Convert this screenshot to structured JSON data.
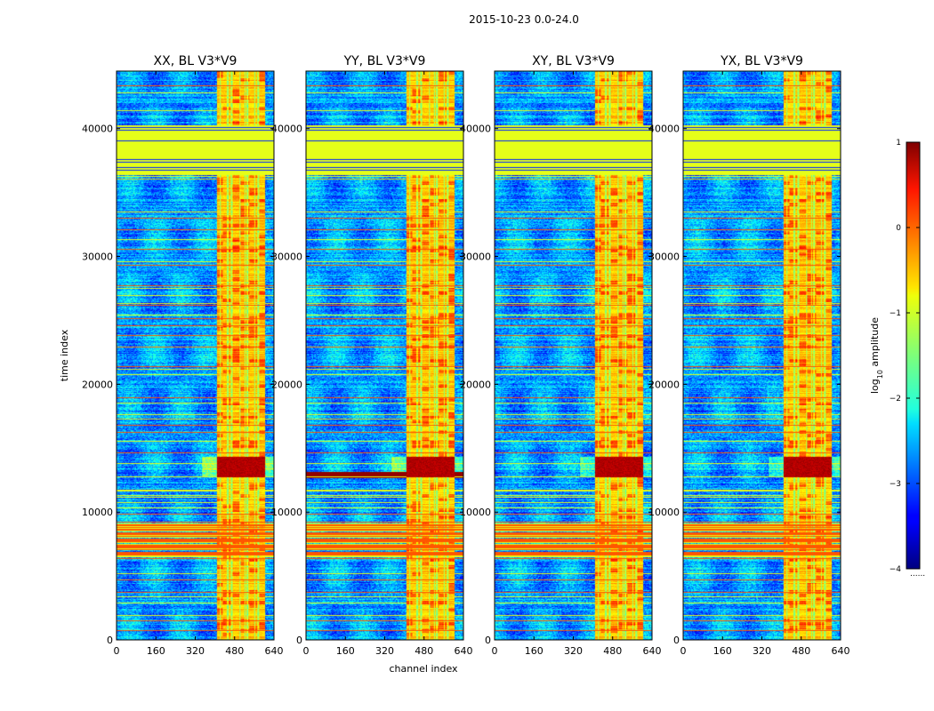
{
  "figure": {
    "suptitle": "2015-10-23 0.0-24.0",
    "xlabel": "channel index",
    "ylabel": "time index",
    "colorbar_label_base": "log",
    "colorbar_label_sub": "10",
    "colorbar_label_rest": " amplitude"
  },
  "chart_data": {
    "type": "heatmap",
    "colormap": "jet",
    "panels": [
      {
        "title": "XX, BL V3*V9",
        "polarization": "XX"
      },
      {
        "title": "YY, BL V3*V9",
        "polarization": "YY"
      },
      {
        "title": "XY, BL V3*V9",
        "polarization": "XY"
      },
      {
        "title": "YX, BL V3*V9",
        "polarization": "YX"
      }
    ],
    "x_range": [
      0,
      640
    ],
    "y_range": [
      0,
      44500
    ],
    "x_ticks": [
      0,
      160,
      320,
      480,
      640
    ],
    "x_tick_labels": [
      "0",
      "160",
      "320",
      "480",
      "640"
    ],
    "y_ticks": [
      0,
      10000,
      20000,
      30000,
      40000
    ],
    "y_tick_labels": [
      "0",
      "10000",
      "20000",
      "30000",
      "40000"
    ],
    "colorbar": {
      "range": [
        -4,
        1
      ],
      "ticks": [
        1,
        0,
        -1,
        -2,
        -3,
        -4
      ],
      "tick_labels": [
        "1",
        "0",
        "−1",
        "−2",
        "−3",
        "−4"
      ],
      "overflow_marker": "......"
    },
    "features": {
      "rfi_band_channels": [
        405,
        600
      ],
      "rfi_band_level": -0.6,
      "background_level": -2.6,
      "saturated_block_time": [
        36300,
        40200
      ],
      "strong_event_time": [
        12700,
        14300
      ],
      "dense_flag_time": [
        6300,
        9300
      ],
      "hot_channels": [
        420,
        450,
        465,
        500,
        520,
        530,
        560,
        575
      ]
    }
  }
}
